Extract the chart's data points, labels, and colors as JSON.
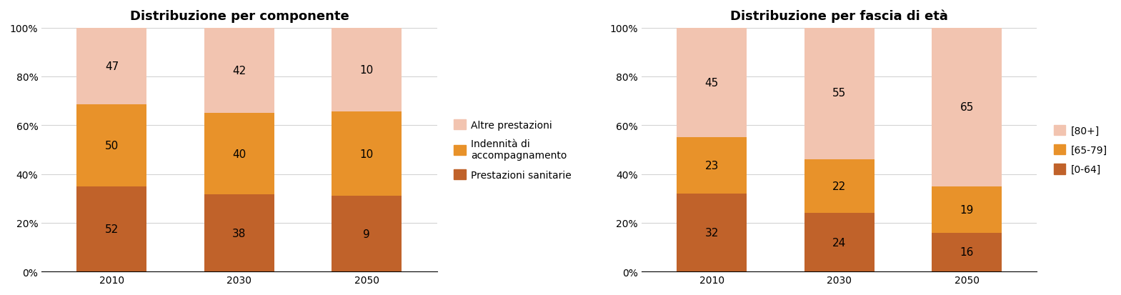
{
  "chart1": {
    "title": "Distribuzione per componente",
    "categories": [
      "2010",
      "2030",
      "2050"
    ],
    "series": [
      {
        "label": "Prestazioni sanitarie",
        "values": [
          52,
          38,
          9
        ],
        "color": "#C0622A"
      },
      {
        "label": "Indennità di\naccompagnamento",
        "values": [
          50,
          40,
          10
        ],
        "color": "#E8922A"
      },
      {
        "label": "Altre prestazioni",
        "values": [
          47,
          42,
          10
        ],
        "color": "#F2C4B0"
      }
    ],
    "yticks": [
      0,
      20,
      40,
      60,
      80,
      100
    ],
    "ytick_labels": [
      "0%",
      "20%",
      "40%",
      "60%",
      "80%",
      "100%"
    ]
  },
  "chart2": {
    "title": "Distribuzione per fascia di età",
    "categories": [
      "2010",
      "2030",
      "2050"
    ],
    "series": [
      {
        "label": "[0-64]",
        "values": [
          32,
          24,
          16
        ],
        "color": "#C0622A"
      },
      {
        "label": "[65-79]",
        "values": [
          23,
          22,
          19
        ],
        "color": "#E8922A"
      },
      {
        "label": "[80+]",
        "values": [
          45,
          55,
          65
        ],
        "color": "#F2C4B0"
      }
    ],
    "yticks": [
      0,
      20,
      40,
      60,
      80,
      100
    ],
    "ytick_labels": [
      "0%",
      "20%",
      "40%",
      "60%",
      "80%",
      "100%"
    ]
  },
  "legend1_items": [
    {
      "label": "Altre prestazioni",
      "color": "#F2C4B0"
    },
    {
      "label": "Indennità di\naccompagnamento",
      "color": "#E8922A"
    },
    {
      "label": "Prestazioni sanitarie",
      "color": "#C0622A"
    }
  ],
  "legend2_items": [
    {
      "label": "[80+]",
      "color": "#F2C4B0"
    },
    {
      "label": "[65-79]",
      "color": "#E8922A"
    },
    {
      "label": "[0-64]",
      "color": "#C0622A"
    }
  ],
  "bar_width": 0.55,
  "title_fontsize": 13,
  "tick_fontsize": 10,
  "label_fontsize": 11,
  "legend_fontsize": 10
}
